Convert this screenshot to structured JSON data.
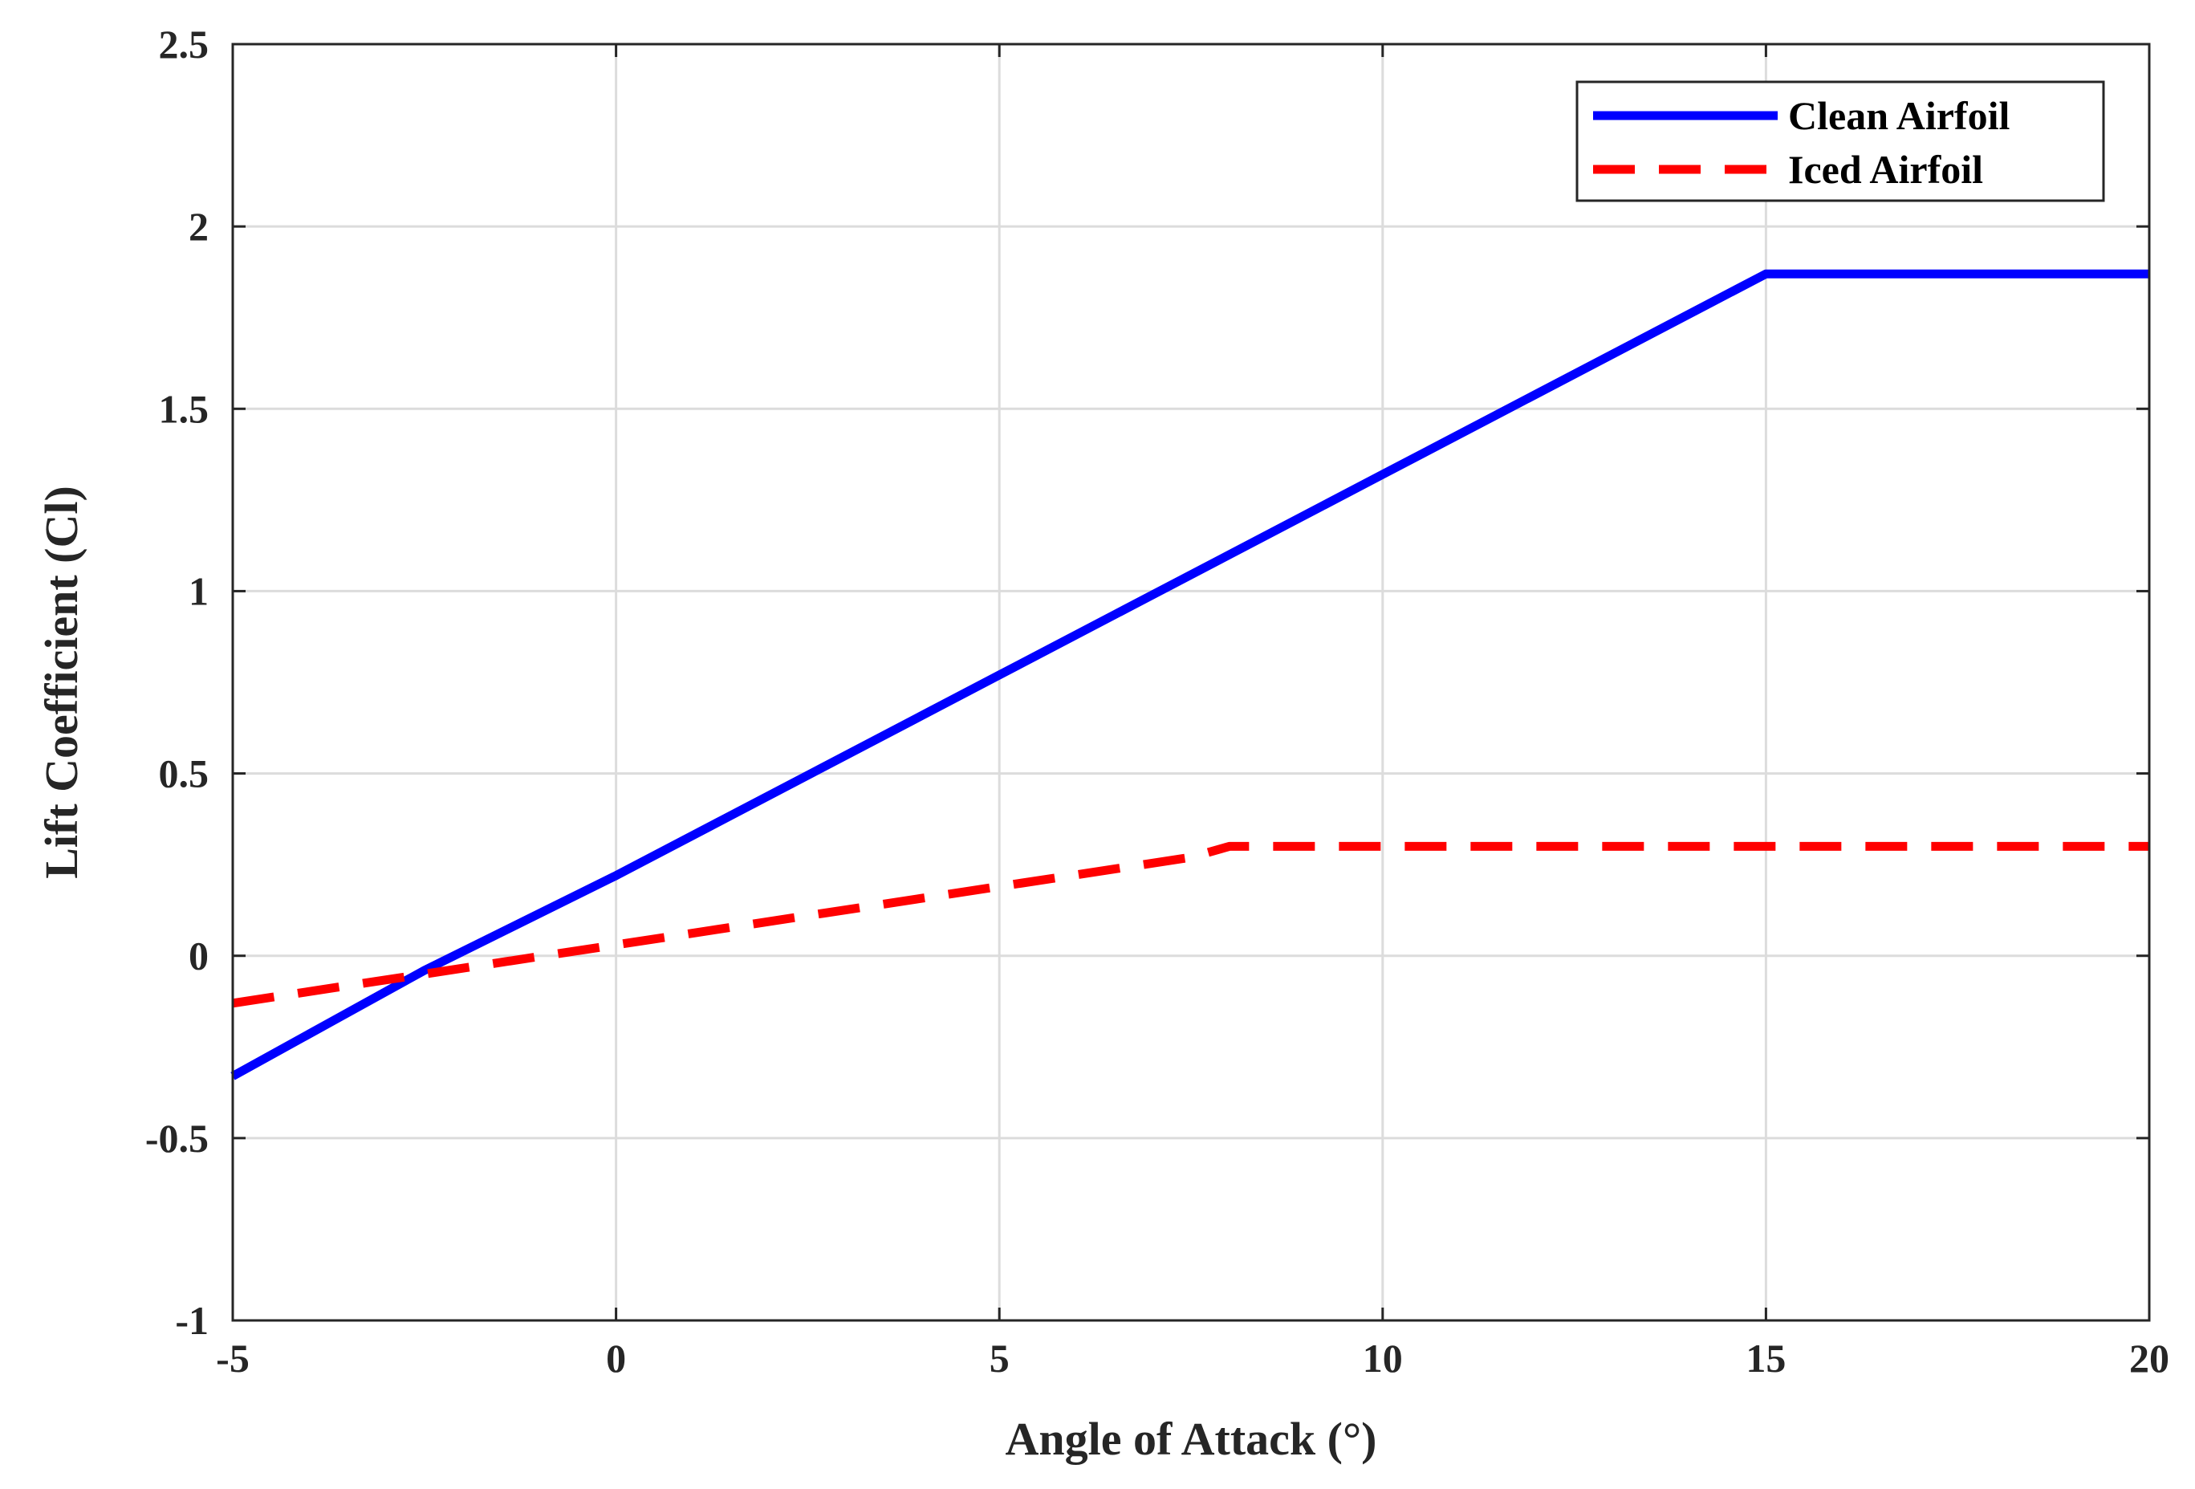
{
  "chart_data": {
    "type": "line",
    "title": "",
    "xlabel": "Angle of Attack (°)",
    "ylabel": "Lift Coefficient (Cl)",
    "xlim": [
      -5,
      20
    ],
    "ylim": [
      -1,
      2.5
    ],
    "xticks": [
      -5,
      0,
      5,
      10,
      15,
      20
    ],
    "yticks": [
      -1,
      -0.5,
      0,
      0.5,
      1,
      1.5,
      2,
      2.5
    ],
    "xtick_labels": [
      "-5",
      "0",
      "5",
      "10",
      "15",
      "20"
    ],
    "ytick_labels": [
      "-1",
      "-0.5",
      "0",
      "0.5",
      "1",
      "1.5",
      "2",
      "2.5"
    ],
    "grid": true,
    "legend_position": "top-right",
    "series": [
      {
        "name": "Clean Airfoil",
        "color": "#0000ff",
        "style": "solid",
        "x": [
          -5,
          -2.5,
          0,
          5,
          10,
          15,
          20
        ],
        "y": [
          -0.33,
          -0.04,
          0.22,
          0.77,
          1.32,
          1.87,
          1.87
        ]
      },
      {
        "name": "Iced Airfoil",
        "color": "#ff0000",
        "style": "dashed",
        "x": [
          -5,
          -2.5,
          0,
          2.5,
          5,
          7.5,
          8,
          10,
          15,
          20
        ],
        "y": [
          -0.13,
          -0.05,
          0.03,
          0.11,
          0.19,
          0.27,
          0.3,
          0.3,
          0.3,
          0.3
        ]
      }
    ]
  }
}
